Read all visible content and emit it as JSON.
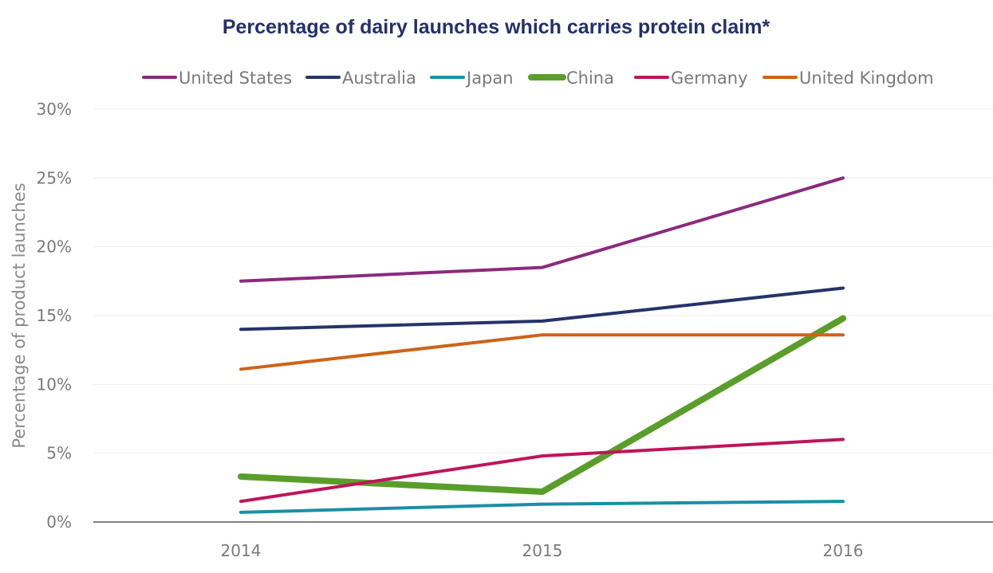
{
  "chart_data": {
    "type": "line",
    "title": "Percentage of dairy launches which carries protein claim*",
    "xlabel": "",
    "ylabel": "Percentage of product launches",
    "categories": [
      "2014",
      "2015",
      "2016"
    ],
    "ylim": [
      0,
      30
    ],
    "yticks": [
      "0%",
      "5%",
      "10%",
      "15%",
      "20%",
      "25%",
      "30%"
    ],
    "grid": true,
    "legend_position": "top",
    "series": [
      {
        "name": "United States",
        "values": [
          17.5,
          18.5,
          25.0
        ],
        "color": "#8b2a7e",
        "weight": "normal"
      },
      {
        "name": "Australia",
        "values": [
          14.0,
          14.6,
          17.0
        ],
        "color": "#26336b",
        "weight": "normal"
      },
      {
        "name": "Japan",
        "values": [
          0.7,
          1.3,
          1.5
        ],
        "color": "#1a8fa6",
        "weight": "normal"
      },
      {
        "name": "China",
        "values": [
          3.3,
          2.2,
          14.8
        ],
        "color": "#5a9e2a",
        "weight": "bold"
      },
      {
        "name": "Germany",
        "values": [
          1.5,
          4.8,
          6.0
        ],
        "color": "#c0145a",
        "weight": "normal"
      },
      {
        "name": "United Kingdom",
        "values": [
          11.1,
          13.6,
          13.6
        ],
        "color": "#cc6418",
        "weight": "normal"
      }
    ]
  }
}
